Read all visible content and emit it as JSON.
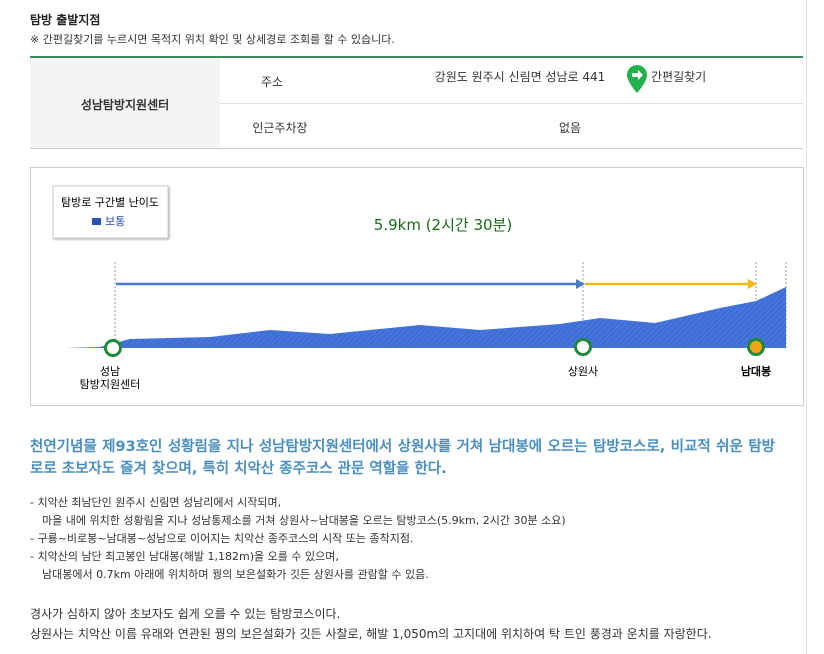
{
  "header": {
    "title": "탐방 출발지점",
    "note": "※ 간편길찾기를 누르시면 목적지 위치 확인 및 상세경로 조회를 할 수 있습니다."
  },
  "table": {
    "place": "성남탐방지원센터",
    "rows": [
      [
        "주소",
        "강원도 원주시 신림면 성남로 441"
      ],
      [
        "인근주차장",
        "없음"
      ]
    ],
    "button": "간편길찾기"
  },
  "course": {
    "legend_title": "탐방로 구간별 난이도",
    "legend_item": "보통",
    "distance": "5.9km (2시간 30분)",
    "points": [
      [
        "성남",
        "탐방지원센터"
      ],
      [
        "상원사"
      ],
      [
        "남대봉"
      ]
    ]
  },
  "description": {
    "heading": "천연기념물 제93호인 성황림을 지나 성남탐방지원센터에서 상원사를 거쳐 남대봉에 오르는 탐방코스로, 비교적 쉬운 탐방로로 초보자도 즐겨 찾으며, 특히 치악산 종주코스 관문 역할을 한다.",
    "bullets": [
      [
        "- 치악산 최남단인 원주시 신림면 성남리에서 시작되며,",
        "마을 내에 위치한 성황림을 지나 성남통제소를 거쳐 상원사~남대봉을 오르는 탐방코스(5.9km, 2시간 30분 소요)"
      ],
      [
        "- 구룡~비로봉~남대봉~성남으로 이어지는 치악산 종주코스의 시작 또는 종착지점."
      ],
      [
        "- 치악산의 남단 최고봉인 남대봉(해발 1,182m)을 오를 수 있으며,",
        "남대봉에서 0.7km 아래에 위치하며 꿩의 보은설화가 깃든 상원사를 관람할 수 있음."
      ]
    ],
    "paragraphs": [
      "경사가 심하지 않아 초보자도 쉽게 오를 수 있는 탐방코스이다.",
      "상원사는 치악산 이름 유래와 연관된 꿩의 보은설화가 깃든 사찰로, 해발 1,050m의 고지대에 위치하여 탁 트인 풍경과 운치를 자랑한다."
    ]
  }
}
